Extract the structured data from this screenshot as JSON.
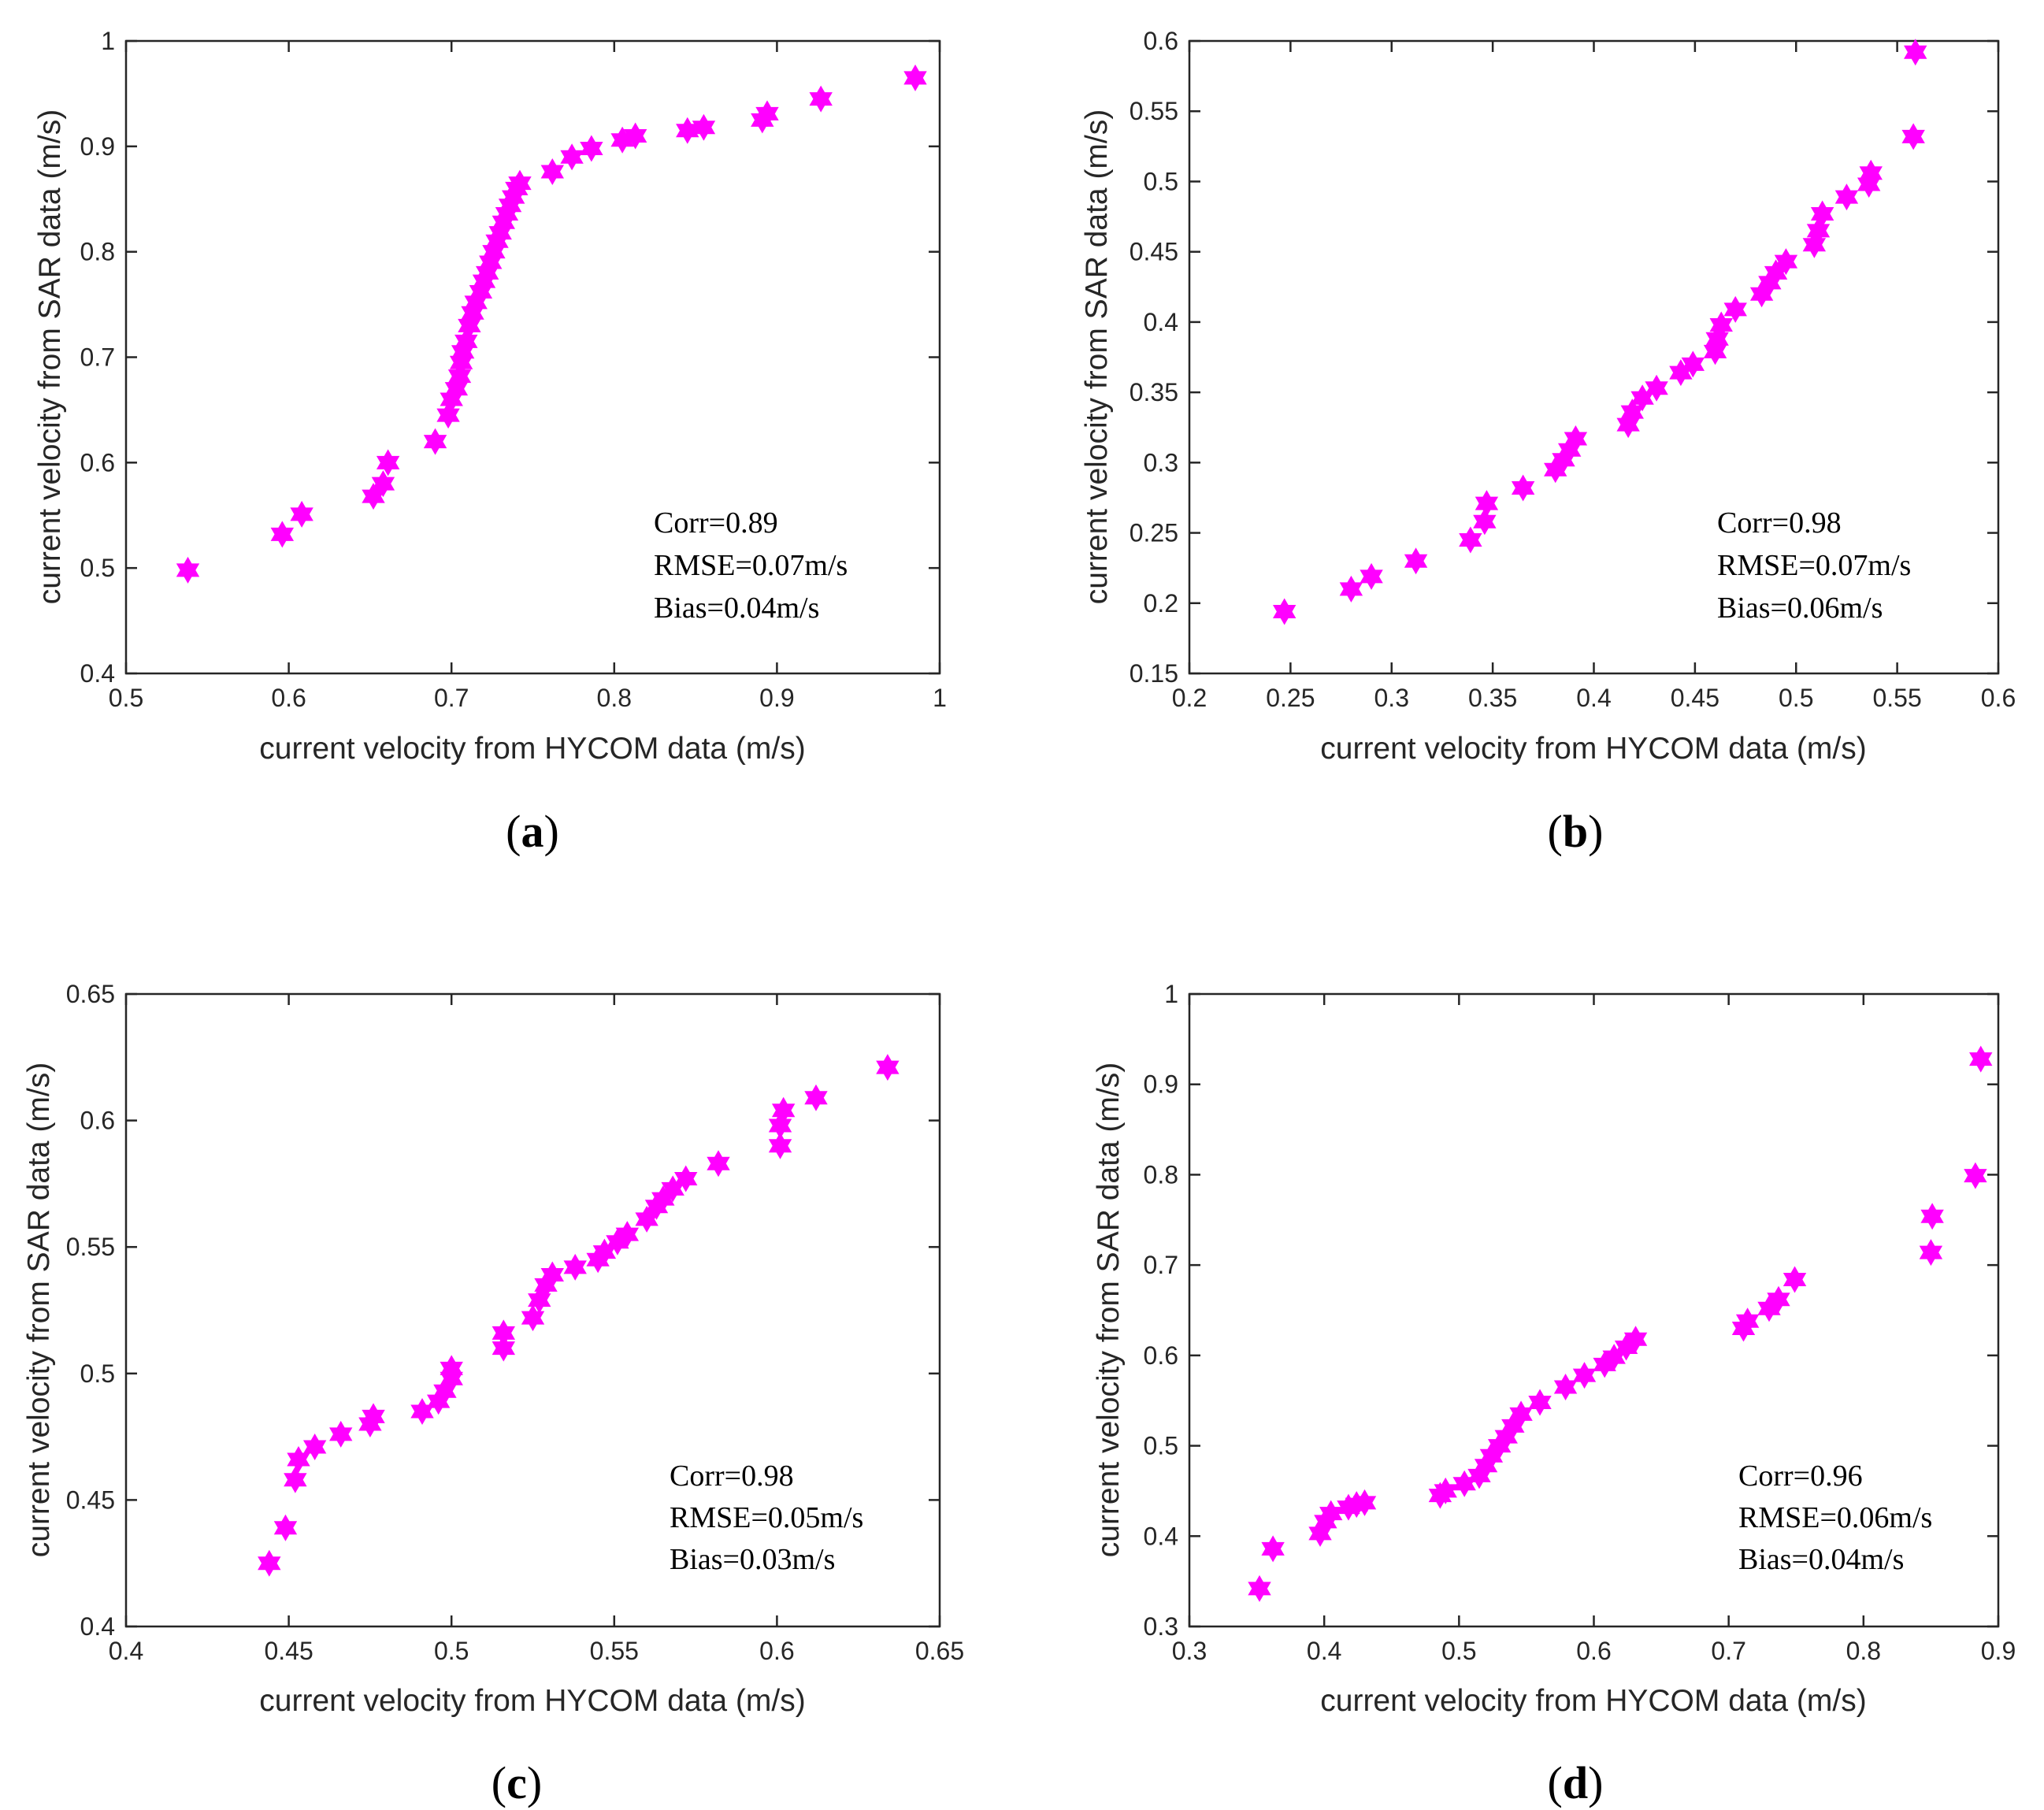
{
  "marker_color": "#ff00ff",
  "chart_data": [
    {
      "type": "scatter",
      "panel": "(a)",
      "panel_letter": "a",
      "xlabel": "current velocity from HYCOM data (m/s)",
      "ylabel": "current velocity from SAR data (m/s)",
      "xlim": [
        0.5,
        1
      ],
      "ylim": [
        0.4,
        1
      ],
      "xticks": [
        0.5,
        0.6,
        0.7,
        0.8,
        0.9,
        1
      ],
      "yticks": [
        0.4,
        0.5,
        0.6,
        0.7,
        0.8,
        0.9,
        1
      ],
      "xtick_labels": [
        "0.5",
        "0.6",
        "0.7",
        "0.8",
        "0.9",
        "1"
      ],
      "ytick_labels": [
        "0.4",
        "0.5",
        "0.6",
        "0.7",
        "0.8",
        "0.9",
        "1"
      ],
      "annotations": [
        "Corr=0.89",
        "RMSE=0.07m/s",
        "Bias=0.04m/s"
      ],
      "x": [
        0.538,
        0.596,
        0.608,
        0.652,
        0.658,
        0.661,
        0.69,
        0.698,
        0.7,
        0.703,
        0.705,
        0.706,
        0.707,
        0.709,
        0.711,
        0.713,
        0.715,
        0.718,
        0.72,
        0.722,
        0.724,
        0.726,
        0.728,
        0.73,
        0.732,
        0.734,
        0.736,
        0.738,
        0.74,
        0.742,
        0.762,
        0.774,
        0.786,
        0.805,
        0.813,
        0.845,
        0.855,
        0.891,
        0.894,
        0.927,
        0.985
      ],
      "y": [
        0.498,
        0.532,
        0.551,
        0.568,
        0.58,
        0.6,
        0.62,
        0.645,
        0.66,
        0.67,
        0.682,
        0.695,
        0.705,
        0.715,
        0.73,
        0.742,
        0.752,
        0.762,
        0.772,
        0.78,
        0.79,
        0.8,
        0.81,
        0.818,
        0.828,
        0.836,
        0.844,
        0.852,
        0.86,
        0.865,
        0.876,
        0.89,
        0.898,
        0.906,
        0.91,
        0.915,
        0.918,
        0.925,
        0.931,
        0.945,
        0.965
      ]
    },
    {
      "type": "scatter",
      "panel": "(b)",
      "panel_letter": "b",
      "xlabel": "current velocity from HYCOM data (m/s)",
      "ylabel": "current velocity from SAR data (m/s)",
      "xlim": [
        0.2,
        0.6
      ],
      "ylim": [
        0.15,
        0.6
      ],
      "xticks": [
        0.2,
        0.25,
        0.3,
        0.35,
        0.4,
        0.45,
        0.5,
        0.55,
        0.6
      ],
      "yticks": [
        0.15,
        0.2,
        0.25,
        0.3,
        0.35,
        0.4,
        0.45,
        0.5,
        0.55,
        0.6
      ],
      "xtick_labels": [
        "0.2",
        "0.25",
        "0.3",
        "0.35",
        "0.4",
        "0.45",
        "0.5",
        "0.55",
        "0.6"
      ],
      "ytick_labels": [
        "0.15",
        "0.2",
        "0.25",
        "0.3",
        "0.35",
        "0.4",
        "0.45",
        "0.5",
        "0.55",
        "0.6"
      ],
      "annotations": [
        "Corr=0.98",
        "RMSE=0.07m/s",
        "Bias=0.06m/s"
      ],
      "x": [
        0.247,
        0.28,
        0.29,
        0.312,
        0.339,
        0.346,
        0.347,
        0.365,
        0.381,
        0.385,
        0.388,
        0.391,
        0.417,
        0.419,
        0.424,
        0.431,
        0.443,
        0.449,
        0.46,
        0.461,
        0.463,
        0.47,
        0.483,
        0.487,
        0.49,
        0.495,
        0.509,
        0.511,
        0.513,
        0.525,
        0.536,
        0.537,
        0.558,
        0.559
      ],
      "y": [
        0.194,
        0.21,
        0.219,
        0.23,
        0.245,
        0.258,
        0.271,
        0.282,
        0.295,
        0.302,
        0.309,
        0.317,
        0.327,
        0.336,
        0.346,
        0.353,
        0.364,
        0.37,
        0.379,
        0.388,
        0.398,
        0.409,
        0.42,
        0.428,
        0.435,
        0.443,
        0.455,
        0.465,
        0.477,
        0.489,
        0.498,
        0.506,
        0.532,
        0.592
      ]
    },
    {
      "type": "scatter",
      "panel": "(c)",
      "panel_letter": "c",
      "xlabel": "current velocity from HYCOM data (m/s)",
      "ylabel": "current velocity from SAR data (m/s)",
      "xlim": [
        0.4,
        0.65
      ],
      "ylim": [
        0.4,
        0.65
      ],
      "xticks": [
        0.4,
        0.45,
        0.5,
        0.55,
        0.6,
        0.65
      ],
      "yticks": [
        0.4,
        0.45,
        0.5,
        0.55,
        0.6,
        0.65
      ],
      "xtick_labels": [
        "0.4",
        "0.45",
        "0.5",
        "0.55",
        "0.6",
        "0.65"
      ],
      "ytick_labels": [
        "0.4",
        "0.45",
        "0.5",
        "0.55",
        "0.6",
        "0.65"
      ],
      "annotations": [
        "Corr=0.98",
        "RMSE=0.05m/s",
        "Bias=0.03m/s"
      ],
      "x": [
        0.444,
        0.449,
        0.452,
        0.453,
        0.458,
        0.466,
        0.475,
        0.476,
        0.491,
        0.496,
        0.498,
        0.5,
        0.5,
        0.516,
        0.516,
        0.525,
        0.527,
        0.529,
        0.531,
        0.538,
        0.545,
        0.547,
        0.551,
        0.554,
        0.56,
        0.563,
        0.565,
        0.568,
        0.572,
        0.582,
        0.601,
        0.601,
        0.602,
        0.612,
        0.634
      ],
      "y": [
        0.425,
        0.439,
        0.458,
        0.466,
        0.471,
        0.476,
        0.48,
        0.483,
        0.485,
        0.489,
        0.493,
        0.498,
        0.502,
        0.51,
        0.516,
        0.522,
        0.529,
        0.535,
        0.539,
        0.542,
        0.545,
        0.548,
        0.552,
        0.555,
        0.561,
        0.566,
        0.569,
        0.573,
        0.577,
        0.583,
        0.59,
        0.598,
        0.604,
        0.609,
        0.621
      ]
    },
    {
      "type": "scatter",
      "panel": "(d)",
      "panel_letter": "d",
      "xlabel": "current velocity from HYCOM data (m/s)",
      "ylabel": "current velocity from SAR data (m/s)",
      "xlim": [
        0.3,
        0.9
      ],
      "ylim": [
        0.3,
        1
      ],
      "xticks": [
        0.3,
        0.4,
        0.5,
        0.6,
        0.7,
        0.8,
        0.9
      ],
      "yticks": [
        0.3,
        0.4,
        0.5,
        0.6,
        0.7,
        0.8,
        0.9,
        1
      ],
      "xtick_labels": [
        "0.3",
        "0.4",
        "0.5",
        "0.6",
        "0.7",
        "0.8",
        "0.9"
      ],
      "ytick_labels": [
        "0.3",
        "0.4",
        "0.5",
        "0.6",
        "0.7",
        "0.8",
        "0.9",
        "1"
      ],
      "annotations": [
        "Corr=0.96",
        "RMSE=0.06m/s",
        "Bias=0.04m/s"
      ],
      "x": [
        0.352,
        0.362,
        0.397,
        0.401,
        0.405,
        0.418,
        0.424,
        0.43,
        0.486,
        0.49,
        0.504,
        0.515,
        0.52,
        0.524,
        0.53,
        0.535,
        0.54,
        0.546,
        0.56,
        0.579,
        0.593,
        0.608,
        0.615,
        0.624,
        0.631,
        0.711,
        0.714,
        0.73,
        0.737,
        0.749,
        0.85,
        0.851,
        0.883,
        0.887
      ],
      "y": [
        0.342,
        0.386,
        0.403,
        0.416,
        0.425,
        0.432,
        0.435,
        0.437,
        0.445,
        0.45,
        0.458,
        0.467,
        0.478,
        0.489,
        0.5,
        0.51,
        0.522,
        0.535,
        0.548,
        0.565,
        0.578,
        0.59,
        0.598,
        0.609,
        0.618,
        0.63,
        0.638,
        0.652,
        0.662,
        0.684,
        0.714,
        0.754,
        0.799,
        0.928
      ]
    }
  ]
}
